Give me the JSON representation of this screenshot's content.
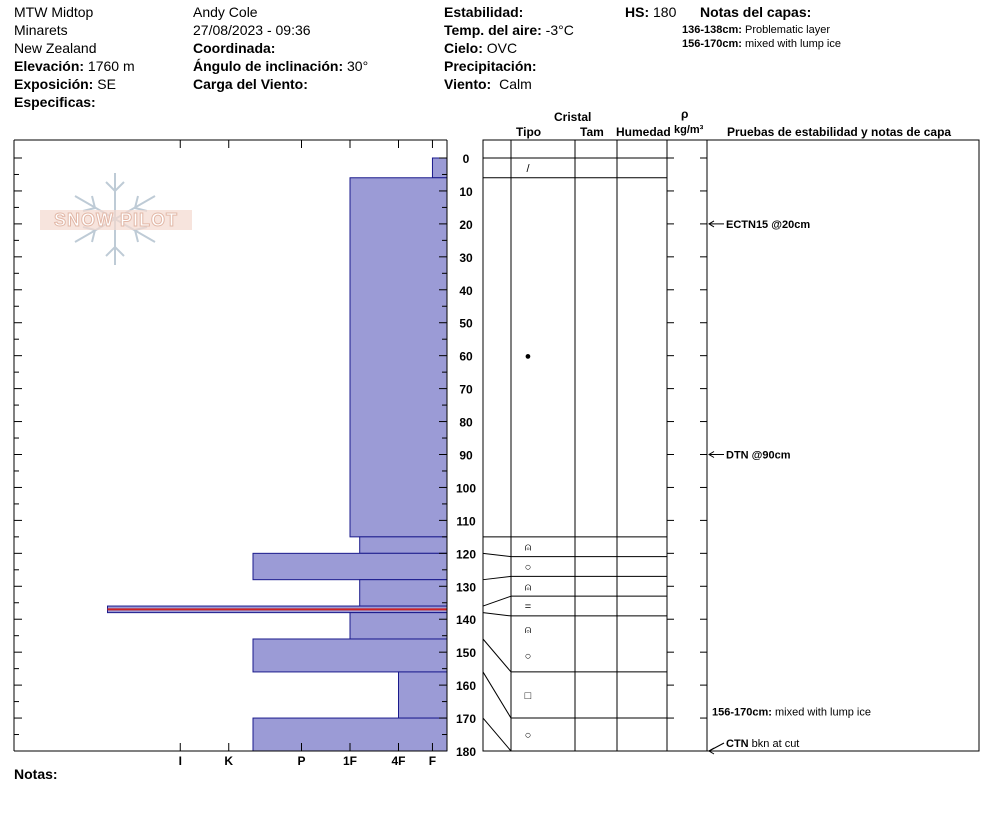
{
  "header": {
    "location": [
      "MTW Midtop",
      "Minarets",
      "New Zealand"
    ],
    "elevation_label": "Elevación:",
    "elevation": "1760 m",
    "aspect_label": "Exposición:",
    "aspect": "SE",
    "specifics_label": "Especificas:",
    "observer": "Andy Cole",
    "datetime": "27/08/2023 - 09:36",
    "coord_label": "Coordinada:",
    "slope_label": "Ángulo de inclinación:",
    "slope": "30°",
    "windload_label": "Carga del Viento:",
    "stability_label": "Estabilidad:",
    "air_temp_label": "Temp. del aire:",
    "air_temp": "-3°C",
    "sky_label": "Cielo:",
    "sky": "OVC",
    "precip_label": "Precipitación:",
    "wind_label": "Viento:",
    "wind": "Calm",
    "hs_label": "HS:",
    "hs": "180",
    "layer_notes_title": "Notas del capas:",
    "layer_notes": [
      {
        "range": "136-138cm:",
        "text": "Problematic layer"
      },
      {
        "range": "156-170cm:",
        "text": "mixed with lump ice"
      }
    ]
  },
  "columns": {
    "crystal": "Cristal",
    "type": "Tipo",
    "size": "Tam",
    "moisture": "Humedad",
    "rho": "ρ",
    "density_unit": "kg/m³",
    "tests": "Pruebas de estabilidad y notas de capa"
  },
  "logo_text": "SNOW PILOT",
  "notes_label": "Notas:",
  "colors": {
    "fill": "#9b9bd6",
    "stroke": "#1a1a8c",
    "problem": "#cc2222"
  },
  "chart_data": {
    "type": "bar",
    "orientation": "horizontal",
    "y_ticks": [
      0,
      10,
      20,
      30,
      40,
      50,
      60,
      70,
      80,
      90,
      100,
      110,
      120,
      130,
      140,
      150,
      160,
      170,
      180
    ],
    "ylim": [
      0,
      180
    ],
    "hardness_scale": [
      "I",
      "K",
      "P",
      "1F",
      "4F",
      "F"
    ],
    "hardness_scale_values": [
      5.5,
      4.5,
      3,
      2,
      1,
      0.3
    ],
    "layers": [
      {
        "top": 0,
        "bottom": 6,
        "hardness": 0.3
      },
      {
        "top": 6,
        "bottom": 115,
        "hardness": 2
      },
      {
        "top": 115,
        "bottom": 120,
        "hardness": 1.8
      },
      {
        "top": 120,
        "bottom": 128,
        "hardness": 4
      },
      {
        "top": 128,
        "bottom": 136,
        "hardness": 1.8
      },
      {
        "top": 136,
        "bottom": 138,
        "hardness": 7,
        "problematic": true
      },
      {
        "top": 138,
        "bottom": 146,
        "hardness": 2
      },
      {
        "top": 146,
        "bottom": 156,
        "hardness": 4
      },
      {
        "top": 156,
        "bottom": 170,
        "hardness": 1
      },
      {
        "top": 170,
        "bottom": 180,
        "hardness": 4
      }
    ],
    "grain_boundaries": [
      0,
      6,
      115,
      121,
      127,
      133,
      139,
      156,
      170,
      180
    ],
    "grains": [
      {
        "depth": 3,
        "symbol": "/"
      },
      {
        "depth": 60,
        "symbol": "●"
      },
      {
        "depth": 118,
        "symbol": "⍝"
      },
      {
        "depth": 124,
        "symbol": "○"
      },
      {
        "depth": 130,
        "symbol": "⍝"
      },
      {
        "depth": 136,
        "symbol": "="
      },
      {
        "depth": 143,
        "symbol": "⍝"
      },
      {
        "depth": 151,
        "symbol": "○"
      },
      {
        "depth": 163,
        "symbol": "□"
      },
      {
        "depth": 175,
        "symbol": "○"
      }
    ],
    "test_notes": [
      {
        "depth": 20,
        "text": "ECTN15 @20cm",
        "arrow": true
      },
      {
        "depth": 90,
        "text": "DTN @90cm",
        "arrow": true
      },
      {
        "depth": 168,
        "text_bold": "156-170cm:",
        "text": "mixed with lump ice",
        "arrow": false
      },
      {
        "depth": 180,
        "text_bold": "CTN",
        "text": "bkn at cut",
        "arrow": true
      }
    ]
  }
}
